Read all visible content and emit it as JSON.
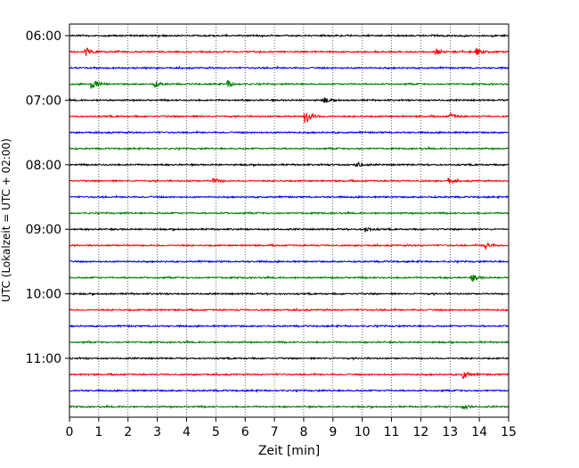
{
  "chart_data": {
    "type": "line",
    "title": "",
    "xlabel": "Zeit  [min]",
    "ylabel": "UTC (Lokalzeit = UTC + 02:00)",
    "xlim": [
      0,
      15
    ],
    "x_ticks": [
      "0",
      "1",
      "2",
      "3",
      "4",
      "5",
      "6",
      "7",
      "8",
      "9",
      "10",
      "11",
      "12",
      "13",
      "14",
      "15"
    ],
    "y_tick_labels": [
      "06:00",
      "07:00",
      "08:00",
      "09:00",
      "10:00",
      "11:00"
    ],
    "trace_start_times": [
      "06:00",
      "06:15",
      "06:30",
      "06:45",
      "07:00",
      "07:15",
      "07:30",
      "07:45",
      "08:00",
      "08:15",
      "08:30",
      "08:45",
      "09:00",
      "09:15",
      "09:30",
      "09:45",
      "10:00",
      "10:15",
      "10:30",
      "10:45",
      "11:00",
      "11:15",
      "11:30",
      "11:45"
    ],
    "trace_colors": [
      "#000000",
      "#ff0000",
      "#0000ff",
      "#008000"
    ],
    "vertical_grid": "dotted",
    "legend": "none",
    "events": [
      {
        "trace": "06:15",
        "minute": 0.55,
        "amplitude": 0.6
      },
      {
        "trace": "06:15",
        "minute": 12.5,
        "amplitude": 0.4
      },
      {
        "trace": "06:15",
        "minute": 13.9,
        "amplitude": 0.45
      },
      {
        "trace": "06:45",
        "minute": 0.75,
        "amplitude": 0.9
      },
      {
        "trace": "06:45",
        "minute": 2.9,
        "amplitude": 0.4
      },
      {
        "trace": "06:45",
        "minute": 5.4,
        "amplitude": 0.45
      },
      {
        "trace": "07:00",
        "minute": 8.7,
        "amplitude": 0.4
      },
      {
        "trace": "07:15",
        "minute": 8.05,
        "amplitude": 1.2
      },
      {
        "trace": "07:15",
        "minute": 13.0,
        "amplitude": 0.4
      },
      {
        "trace": "08:00",
        "minute": 9.8,
        "amplitude": 0.35
      },
      {
        "trace": "08:15",
        "minute": 4.9,
        "amplitude": 0.35
      },
      {
        "trace": "08:15",
        "minute": 12.95,
        "amplitude": 0.4
      },
      {
        "trace": "09:00",
        "minute": 10.1,
        "amplitude": 0.35
      },
      {
        "trace": "09:15",
        "minute": 14.2,
        "amplitude": 0.5
      },
      {
        "trace": "09:45",
        "minute": 13.75,
        "amplitude": 0.5
      },
      {
        "trace": "11:15",
        "minute": 13.45,
        "amplitude": 0.6
      },
      {
        "trace": "11:45",
        "minute": 13.45,
        "amplitude": 0.35
      }
    ]
  }
}
